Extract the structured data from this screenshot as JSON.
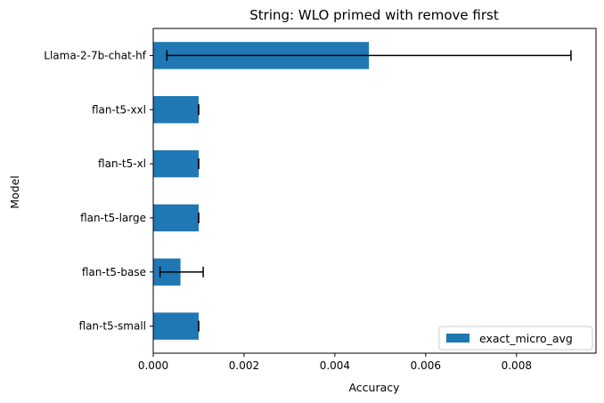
{
  "chart_data": {
    "type": "bar",
    "orientation": "horizontal",
    "title": "String: WLO primed with remove first",
    "xlabel": "Accuracy",
    "ylabel": "Model",
    "categories": [
      "flan-t5-small",
      "flan-t5-base",
      "flan-t5-large",
      "flan-t5-xl",
      "flan-t5-xxl",
      "Llama-2-7b-chat-hf"
    ],
    "series": [
      {
        "name": "exact_micro_avg",
        "color": "#1f77b4",
        "values": [
          0.001,
          0.0006,
          0.001,
          0.001,
          0.001,
          0.00475
        ],
        "error_low": [
          0.001,
          0.00015,
          0.001,
          0.001,
          0.001,
          0.0003
        ],
        "error_high": [
          0.001,
          0.0011,
          0.001,
          0.001,
          0.001,
          0.0092
        ]
      }
    ],
    "xlim": [
      0,
      0.00975
    ],
    "xticks": [
      0,
      0.002,
      0.004,
      0.006,
      0.008
    ],
    "xtick_labels": [
      "0.000",
      "0.002",
      "0.004",
      "0.006",
      "0.008"
    ],
    "grid": false,
    "legend_position": "lower-right"
  }
}
